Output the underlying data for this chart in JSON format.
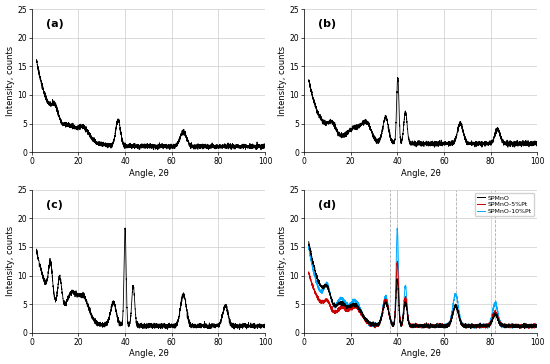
{
  "xlim": [
    0,
    100
  ],
  "ylim": [
    0,
    25
  ],
  "yticks": [
    0,
    5,
    10,
    15,
    20,
    25
  ],
  "xticks": [
    0,
    20,
    40,
    60,
    80,
    100
  ],
  "xlabel": "Angle, 2θ",
  "ylabel": "Intensity, counts",
  "panel_labels": [
    "(a)",
    "(b)",
    "(c)",
    "(d)"
  ],
  "legend_labels": [
    "SPMnO",
    "SPMnO-5%Pt",
    "SPMnO-10%Pt"
  ],
  "legend_colors": [
    "#000000",
    "#cc0000",
    "#00aaff"
  ],
  "vlines_d": [
    37,
    40,
    65,
    82
  ],
  "background": "#ffffff",
  "grid_color": "#cccccc"
}
